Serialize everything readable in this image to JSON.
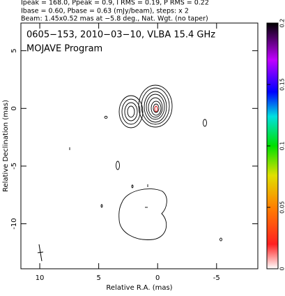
{
  "chart_data": {
    "type": "contour",
    "header": [
      "Ipeak = 168.0, Ppeak = 0.9, I RMS = 0.19, P RMS = 0.22",
      "Ibase = 0.60, Pbase = 0.63 (mJy/beam), steps: x 2",
      "Beam: 1.45x0.52 mas at −5.8 deg., Nat. Wgt. (no taper)"
    ],
    "title": "0605−153, 2010−03−10, VLBA 15.4 GHz",
    "subtitle": "MOJAVE Program",
    "x_label": "Relative R.A. (mas)",
    "y_label": "Relative Declination (mas)",
    "xlim": [
      11.6,
      -8.5
    ],
    "xticks": [
      10,
      5,
      0,
      -5
    ],
    "ylim": [
      -13.9,
      7.4
    ],
    "yticks": [
      5,
      0,
      -5,
      -10
    ],
    "colorbar": {
      "ylim": [
        0,
        0.2
      ],
      "yticks": [
        0,
        0.05,
        0.1,
        0.15,
        0.2
      ]
    }
  }
}
